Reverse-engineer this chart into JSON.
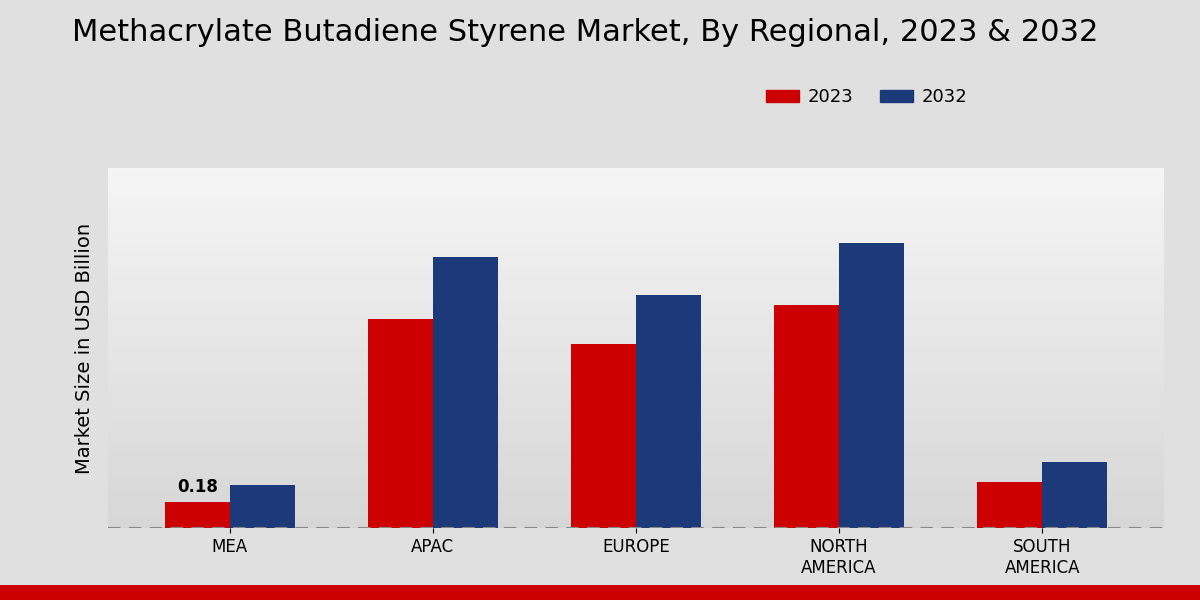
{
  "title": "Methacrylate Butadiene Styrene Market, By Regional, 2023 & 2032",
  "ylabel": "Market Size in USD Billion",
  "categories": [
    "MEA",
    "APAC",
    "EUROPE",
    "NORTH\nAMERICA",
    "SOUTH\nAMERICA"
  ],
  "values_2023": [
    0.18,
    1.45,
    1.28,
    1.55,
    0.32
  ],
  "values_2032": [
    0.3,
    1.88,
    1.62,
    1.98,
    0.46
  ],
  "color_2023": "#cc0000",
  "color_2032": "#1c3a7a",
  "annotation_text": "0.18",
  "annotation_category_index": 0,
  "legend_2023": "2023",
  "legend_2032": "2032",
  "bar_width": 0.32,
  "ylim": [
    0,
    2.5
  ],
  "dashed_line_y": 0.0,
  "title_fontsize": 22,
  "axis_label_fontsize": 14,
  "tick_fontsize": 12,
  "legend_fontsize": 13,
  "annotation_fontsize": 12,
  "red_bar_color": "#cc0000",
  "fig_bg": "#e0e0e0"
}
